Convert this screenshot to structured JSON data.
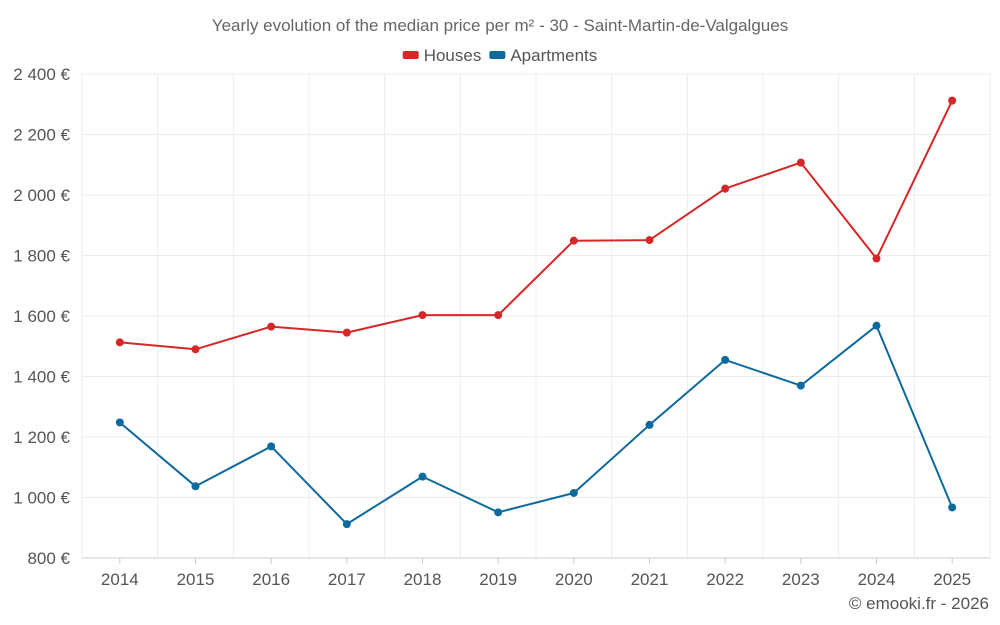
{
  "chart_data": {
    "type": "line",
    "title": "Yearly evolution of the median price per m² - 30 - Saint-Martin-de-Valgalgues",
    "categories": [
      "2014",
      "2015",
      "2016",
      "2017",
      "2018",
      "2019",
      "2020",
      "2021",
      "2022",
      "2023",
      "2024",
      "2025"
    ],
    "series": [
      {
        "name": "Houses",
        "color": "#d62728",
        "values": [
          1513,
          1490,
          1565,
          1545,
          1603,
          1603,
          1849,
          1851,
          2021,
          2107,
          1790,
          2312
        ]
      },
      {
        "name": "Apartments",
        "color": "#0e6a9c",
        "values": [
          1248,
          1037,
          1169,
          912,
          1069,
          951,
          1015,
          1240,
          1455,
          1370,
          1568,
          967
        ]
      }
    ],
    "ylim": [
      800,
      2400
    ],
    "yticks": [
      800,
      1000,
      1200,
      1400,
      1600,
      1800,
      2000,
      2200,
      2400
    ],
    "ytick_labels": [
      "800 €",
      "1 000 €",
      "1 200 €",
      "1 400 €",
      "1 600 €",
      "1 800 €",
      "2 000 €",
      "2 200 €",
      "2 400 €"
    ],
    "grid": true,
    "legend": "top-center",
    "xlabel": "",
    "ylabel": ""
  },
  "credit": "© emooki.fr - 2026"
}
